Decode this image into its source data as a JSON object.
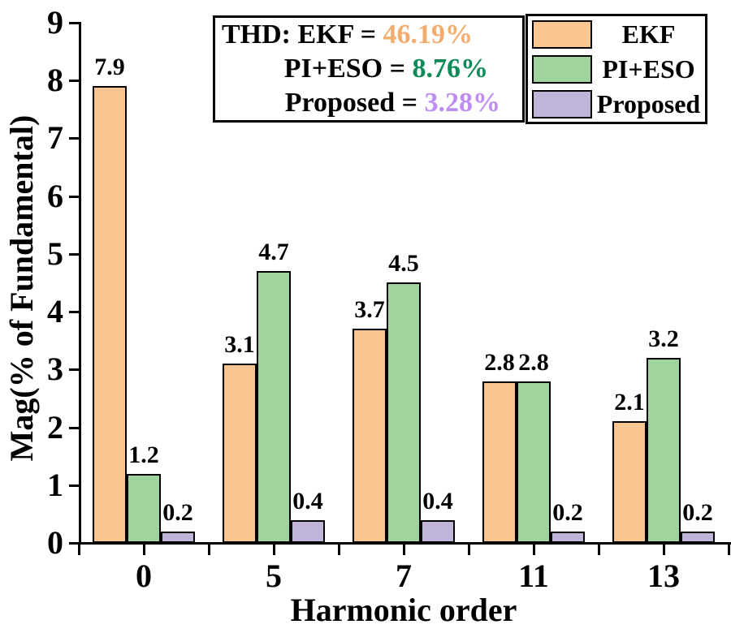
{
  "chart_data": {
    "type": "bar",
    "categories": [
      "0",
      "5",
      "7",
      "11",
      "13"
    ],
    "series": [
      {
        "name": "EKF",
        "color": "#F9C591",
        "values": [
          7.9,
          3.1,
          3.7,
          2.8,
          2.1
        ]
      },
      {
        "name": "PI+ESO",
        "color": "#A0D39D",
        "values": [
          1.2,
          4.7,
          4.5,
          2.8,
          3.2
        ]
      },
      {
        "name": "Proposed",
        "color": "#C0B5D9",
        "values": [
          0.2,
          0.4,
          0.4,
          0.2,
          0.2
        ]
      }
    ],
    "xlabel": "Harmonic order",
    "ylabel": "Mag(% of Fundamental)",
    "ylim": [
      0,
      9
    ],
    "y_ticks": [
      0,
      1,
      2,
      3,
      4,
      5,
      6,
      7,
      8,
      9
    ],
    "bar_value_labels": true,
    "grid": false,
    "legend_position": "top-right"
  },
  "annotation_box": {
    "lines": [
      {
        "prefix": "THD: EKF = ",
        "value": "46.19%",
        "value_color": "#F2AC6E"
      },
      {
        "prefix": "PI+ESO = ",
        "value": "8.76%",
        "value_color": "#0E8B57"
      },
      {
        "prefix": "Proposed = ",
        "value": "3.28%",
        "value_color": "#BF8DF2"
      }
    ]
  },
  "legend": {
    "items": [
      {
        "label": "EKF",
        "color": "#F9C591"
      },
      {
        "label": "PI+ESO",
        "color": "#A0D39D"
      },
      {
        "label": "Proposed",
        "color": "#C0B5D9"
      }
    ]
  },
  "colors": {
    "axis": "#000000",
    "background": "#FFFFFF"
  }
}
